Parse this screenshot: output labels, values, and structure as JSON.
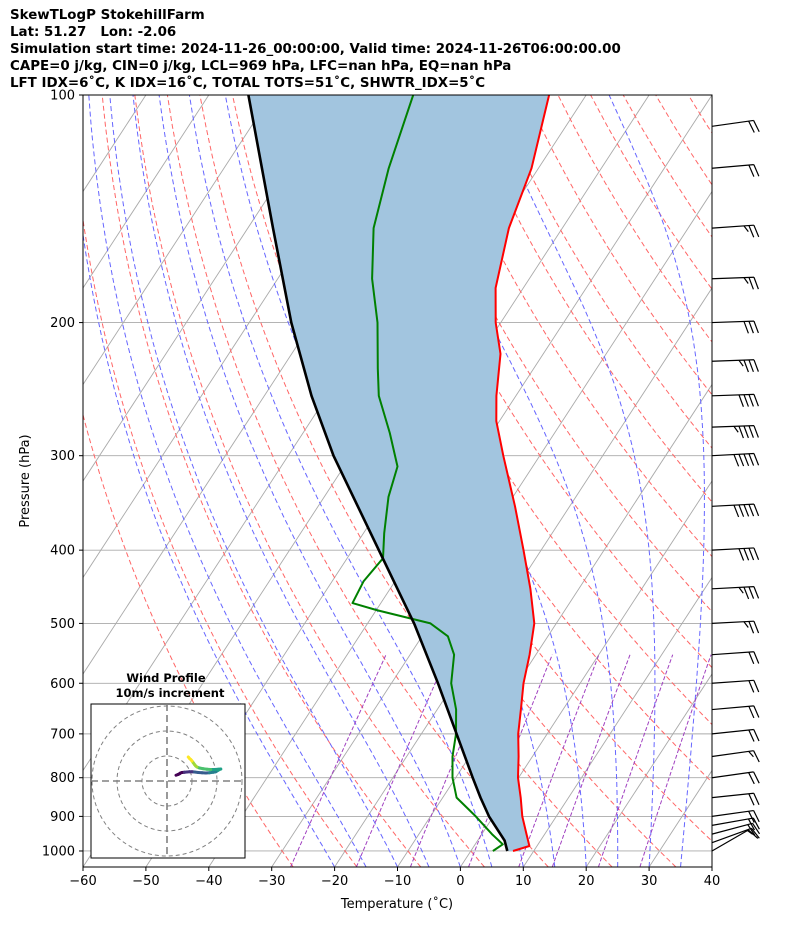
{
  "header": {
    "title": "SkewTLogP StokehillFarm",
    "location": "Lat: 51.27   Lon: -2.06",
    "times": "Simulation start time: 2024-11-26_00:00:00, Valid time: 2024-11-26T06:00:00.00",
    "indices1": "CAPE=0 j/kg, CIN=0 j/kg, LCL=969 hPa, LFC=nan hPa, EQ=nan hPa",
    "indices2": "LFT IDX=6˚C, K IDX=16˚C, TOTAL TOTS=51˚C, SHWTR_IDX=5˚C"
  },
  "chart_data": {
    "type": "line",
    "xlabel": "Temperature (˚C)",
    "ylabel": "Pressure (hPa)",
    "xlim": [
      -60,
      40
    ],
    "ylim": [
      1050,
      100
    ],
    "x_ticks": [
      -60,
      -50,
      -40,
      -30,
      -20,
      -10,
      0,
      10,
      20,
      30,
      40
    ],
    "y_ticks": [
      100,
      200,
      300,
      400,
      500,
      600,
      700,
      800,
      900,
      1000
    ],
    "log_pressure": true,
    "grid": true,
    "colors": {
      "temperature": "#ff0000",
      "dewpoint": "#008000",
      "parcel": "#000000",
      "cape_fill": "#a2c5df",
      "dry_adiabats": "#ff6666",
      "moist_adiabats": "#6666ff",
      "mixing_ratio": "#a040c0",
      "isotherms": "#aaaaaa"
    },
    "series": [
      {
        "kind": "temperature",
        "points": [
          [
            1000,
            6.7
          ],
          [
            985,
            8.8
          ],
          [
            950,
            7.1
          ],
          [
            900,
            4.6
          ],
          [
            850,
            2.4
          ],
          [
            800,
            -0.1
          ],
          [
            750,
            -2.2
          ],
          [
            700,
            -4.6
          ],
          [
            650,
            -6.7
          ],
          [
            600,
            -9.0
          ],
          [
            550,
            -11.0
          ],
          [
            500,
            -13.5
          ],
          [
            450,
            -17.7
          ],
          [
            400,
            -22.8
          ],
          [
            350,
            -28.7
          ],
          [
            300,
            -35.8
          ],
          [
            270,
            -40.5
          ],
          [
            250,
            -43.1
          ],
          [
            220,
            -46.8
          ],
          [
            200,
            -50.8
          ],
          [
            180,
            -54.4
          ],
          [
            150,
            -58.5
          ],
          [
            125,
            -61.1
          ],
          [
            100,
            -65.9
          ]
        ]
      },
      {
        "kind": "dewpoint",
        "points": [
          [
            1000,
            3.5
          ],
          [
            980,
            4.4
          ],
          [
            950,
            1.6
          ],
          [
            900,
            -2.8
          ],
          [
            850,
            -7.8
          ],
          [
            800,
            -10.5
          ],
          [
            750,
            -12.7
          ],
          [
            700,
            -14.5
          ],
          [
            650,
            -17.0
          ],
          [
            600,
            -20.5
          ],
          [
            550,
            -23.0
          ],
          [
            520,
            -25.9
          ],
          [
            500,
            -30.0
          ],
          [
            480,
            -40.0
          ],
          [
            470,
            -44.5
          ],
          [
            440,
            -45.0
          ],
          [
            410,
            -44.3
          ],
          [
            380,
            -46.7
          ],
          [
            340,
            -49.8
          ],
          [
            310,
            -51.5
          ],
          [
            280,
            -56.2
          ],
          [
            250,
            -61.8
          ],
          [
            230,
            -64.8
          ],
          [
            200,
            -69.6
          ],
          [
            175,
            -75.0
          ],
          [
            150,
            -80.0
          ],
          [
            125,
            -83.8
          ],
          [
            100,
            -87.5
          ]
        ]
      },
      {
        "kind": "parcel",
        "points": [
          [
            1000,
            5.8
          ],
          [
            969,
            4.3
          ],
          [
            900,
            -0.7
          ],
          [
            850,
            -4.0
          ],
          [
            800,
            -7.3
          ],
          [
            700,
            -14.4
          ],
          [
            600,
            -22.6
          ],
          [
            500,
            -32.6
          ],
          [
            400,
            -45.8
          ],
          [
            300,
            -62.8
          ],
          [
            250,
            -72.5
          ],
          [
            200,
            -83.3
          ],
          [
            150,
            -96.0
          ],
          [
            100,
            -113.7
          ]
        ]
      }
    ],
    "wind_barbs": [
      {
        "p": 1000,
        "speed_kt": 10,
        "dir_deg": 240
      },
      {
        "p": 975,
        "speed_kt": 15,
        "dir_deg": 250
      },
      {
        "p": 950,
        "speed_kt": 20,
        "dir_deg": 255
      },
      {
        "p": 925,
        "speed_kt": 20,
        "dir_deg": 260
      },
      {
        "p": 900,
        "speed_kt": 20,
        "dir_deg": 262
      },
      {
        "p": 850,
        "speed_kt": 20,
        "dir_deg": 264
      },
      {
        "p": 800,
        "speed_kt": 20,
        "dir_deg": 262
      },
      {
        "p": 750,
        "speed_kt": 15,
        "dir_deg": 262
      },
      {
        "p": 700,
        "speed_kt": 20,
        "dir_deg": 264
      },
      {
        "p": 650,
        "speed_kt": 20,
        "dir_deg": 265
      },
      {
        "p": 600,
        "speed_kt": 20,
        "dir_deg": 266
      },
      {
        "p": 550,
        "speed_kt": 20,
        "dir_deg": 266
      },
      {
        "p": 500,
        "speed_kt": 25,
        "dir_deg": 267
      },
      {
        "p": 450,
        "speed_kt": 35,
        "dir_deg": 267
      },
      {
        "p": 400,
        "speed_kt": 40,
        "dir_deg": 267
      },
      {
        "p": 350,
        "speed_kt": 50,
        "dir_deg": 267
      },
      {
        "p": 300,
        "speed_kt": 50,
        "dir_deg": 267
      },
      {
        "p": 275,
        "speed_kt": 45,
        "dir_deg": 268
      },
      {
        "p": 250,
        "speed_kt": 40,
        "dir_deg": 268
      },
      {
        "p": 225,
        "speed_kt": 35,
        "dir_deg": 268
      },
      {
        "p": 200,
        "speed_kt": 30,
        "dir_deg": 268
      },
      {
        "p": 175,
        "speed_kt": 25,
        "dir_deg": 268
      },
      {
        "p": 150,
        "speed_kt": 25,
        "dir_deg": 266
      },
      {
        "p": 125,
        "speed_kt": 20,
        "dir_deg": 265
      },
      {
        "p": 110,
        "speed_kt": 20,
        "dir_deg": 262
      }
    ],
    "hodograph": {
      "title": "Wind Profile",
      "subtitle": "10m/s increment",
      "rings": [
        10,
        20,
        30
      ],
      "points": [
        [
          3.6,
          2.3
        ],
        [
          4.4,
          2.6
        ],
        [
          5.0,
          2.9
        ],
        [
          5.4,
          3.2
        ],
        [
          6.0,
          3.4
        ],
        [
          7.0,
          3.5
        ],
        [
          8.0,
          3.6
        ],
        [
          9.0,
          3.7
        ],
        [
          10.0,
          3.7
        ],
        [
          11.0,
          3.6
        ],
        [
          12.5,
          3.4
        ],
        [
          14.0,
          3.3
        ],
        [
          15.5,
          3.2
        ],
        [
          17.0,
          3.3
        ],
        [
          18.5,
          3.5
        ],
        [
          19.5,
          3.7
        ],
        [
          20.0,
          4.0
        ],
        [
          20.5,
          4.3
        ],
        [
          21.0,
          4.6
        ],
        [
          21.5,
          4.8
        ],
        [
          20.5,
          4.7
        ],
        [
          19.0,
          4.6
        ],
        [
          17.5,
          4.6
        ],
        [
          16.0,
          4.7
        ],
        [
          14.5,
          4.9
        ],
        [
          13.0,
          5.2
        ],
        [
          12.0,
          5.6
        ],
        [
          11.5,
          6.0
        ],
        [
          11.0,
          6.6
        ],
        [
          10.5,
          7.3
        ],
        [
          10.0,
          8.0
        ],
        [
          9.5,
          8.6
        ],
        [
          9.0,
          9.0
        ],
        [
          8.7,
          9.4
        ],
        [
          8.5,
          9.6
        ]
      ]
    }
  }
}
